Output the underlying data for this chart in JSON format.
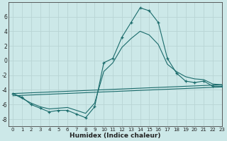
{
  "xlabel": "Humidex (Indice chaleur)",
  "background_color": "#cce8e8",
  "grid_color": "#b8d4d4",
  "line_color": "#1a6b6b",
  "line1_x": [
    0,
    1,
    2,
    3,
    4,
    5,
    6,
    7,
    8,
    9,
    10,
    11,
    12,
    13,
    14,
    15,
    16,
    17,
    18,
    19,
    20,
    21,
    22,
    23
  ],
  "line1_y": [
    -4.5,
    -5.0,
    -6.0,
    -6.5,
    -7.0,
    -6.8,
    -6.8,
    -7.3,
    -7.8,
    -6.3,
    -0.3,
    0.3,
    3.2,
    5.2,
    7.2,
    6.8,
    5.2,
    0.3,
    -1.7,
    -2.8,
    -3.0,
    -2.8,
    -3.5,
    -3.5
  ],
  "line2_x": [
    0,
    2,
    3,
    4,
    5,
    6,
    7,
    8,
    9,
    10,
    11,
    12,
    13,
    14,
    15,
    16,
    17,
    18,
    19,
    20,
    21,
    22,
    23
  ],
  "line2_y": [
    -4.5,
    -5.8,
    -6.3,
    -6.6,
    -6.5,
    -6.4,
    -6.8,
    -7.2,
    -5.8,
    -1.5,
    -0.3,
    1.8,
    3.0,
    4.0,
    3.5,
    2.2,
    -0.5,
    -1.5,
    -2.2,
    -2.5,
    -2.6,
    -3.2,
    -3.3
  ],
  "line3_x": [
    0,
    23
  ],
  "line3_y": [
    -4.5,
    -3.3
  ],
  "line4_x": [
    0,
    23
  ],
  "line4_y": [
    -4.8,
    -3.6
  ],
  "ylim": [
    -9,
    8
  ],
  "xlim": [
    -0.5,
    23
  ],
  "yticks": [
    -8,
    -6,
    -4,
    -2,
    0,
    2,
    4,
    6
  ],
  "xticks": [
    0,
    1,
    2,
    3,
    4,
    5,
    6,
    7,
    8,
    9,
    10,
    11,
    12,
    13,
    14,
    15,
    16,
    17,
    18,
    19,
    20,
    21,
    22,
    23
  ]
}
